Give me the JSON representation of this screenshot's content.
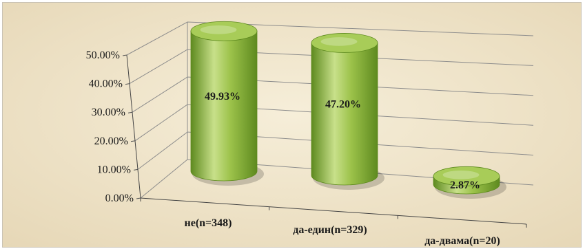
{
  "chart_data": {
    "type": "bar",
    "style": "3d-cylinder",
    "categories": [
      "не(n=348)",
      "да-един(n=329)",
      "да-двама(n=20)"
    ],
    "values": [
      49.93,
      47.2,
      2.87
    ],
    "data_labels": [
      "49.93%",
      "47.20%",
      "2.87%"
    ],
    "y_ticks": [
      "0.00%",
      "10.00%",
      "20.00%",
      "30.00%",
      "40.00%",
      "50.00%"
    ],
    "ylim": [
      0,
      50
    ],
    "grid": true,
    "legend": false,
    "title": "",
    "xlabel": "",
    "ylabel": ""
  },
  "colors": {
    "background": "#efe4cc",
    "cylinder_dark": "#5e8a1f",
    "cylinder_mid": "#9cc24a",
    "cylinder_light": "#c8e08a",
    "cylinder_top": "#a8cc58",
    "gridline": "#8c8c8c"
  }
}
